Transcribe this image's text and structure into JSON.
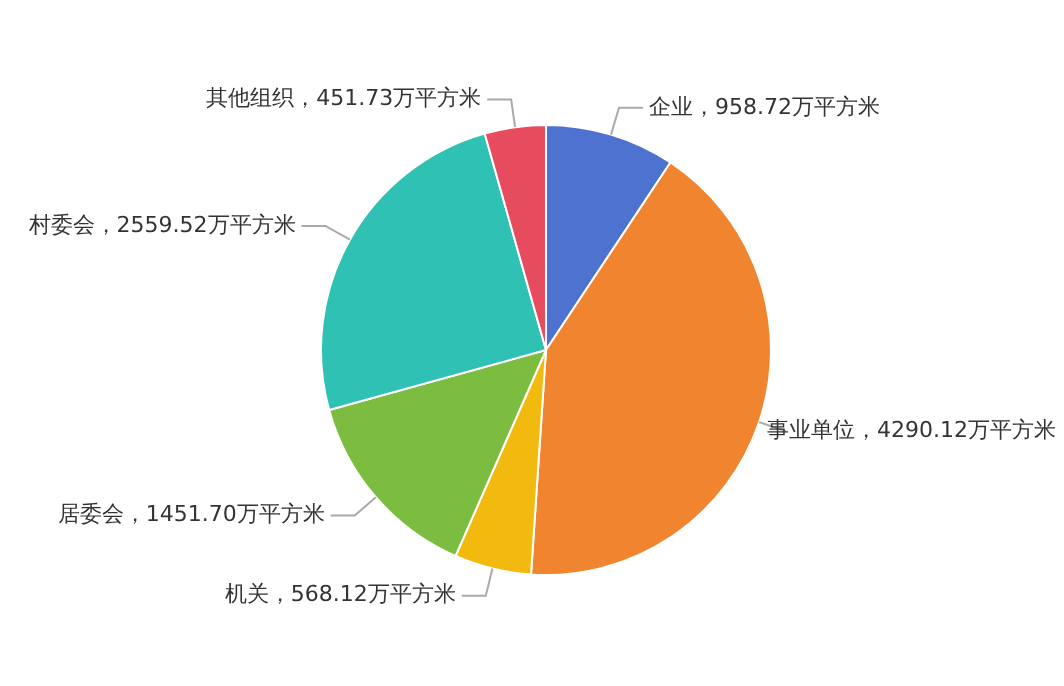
{
  "chart_data": {
    "type": "pie",
    "categories": [
      "企业",
      "事业单位",
      "机关",
      "居委会",
      "村委会",
      "其他组织"
    ],
    "values": [
      958.72,
      4290.12,
      568.12,
      1451.7,
      2559.52,
      451.73
    ],
    "colors": [
      "#4e72d0",
      "#f0842f",
      "#f2b90f",
      "#7cbd41",
      "#2fc1b4",
      "#e64c5e"
    ],
    "value_labels": [
      "，958.72万平方米",
      "，4290.12万平方米",
      "，568.12万平方米",
      "，1451.70万平方米",
      "，2559.52万平方米",
      "，451.73万平方米"
    ],
    "legend": false
  }
}
